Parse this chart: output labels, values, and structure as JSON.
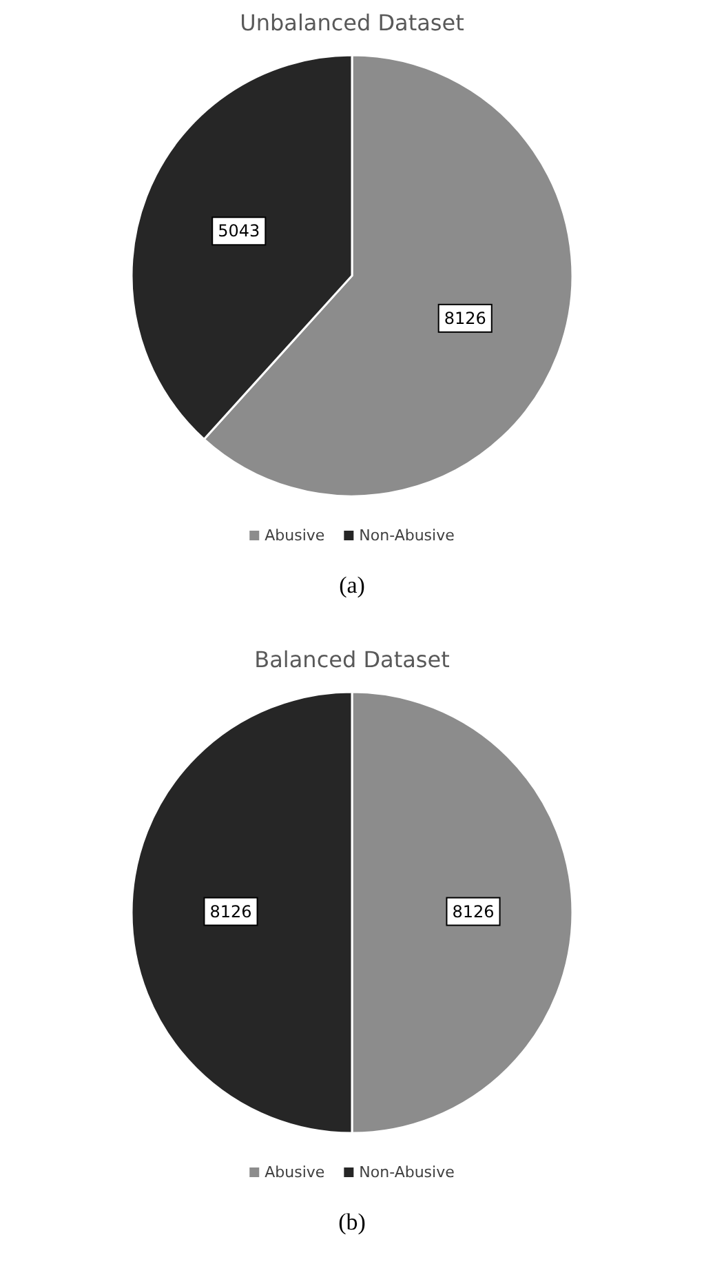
{
  "chart_data": [
    {
      "type": "pie",
      "title": "Unbalanced Dataset",
      "categories": [
        "Abusive",
        "Non-Abusive"
      ],
      "values": [
        8126,
        5043
      ],
      "colors": [
        "#8c8c8c",
        "#262626"
      ],
      "data_labels": true,
      "legend": "bottom",
      "annotations": [
        "(a)"
      ]
    },
    {
      "type": "pie",
      "title": "Balanced Dataset",
      "categories": [
        "Abusive",
        "Non-Abusive"
      ],
      "values": [
        8126,
        8126
      ],
      "colors": [
        "#8c8c8c",
        "#262626"
      ],
      "data_labels": true,
      "legend": "bottom",
      "annotations": [
        "(b)"
      ]
    }
  ]
}
